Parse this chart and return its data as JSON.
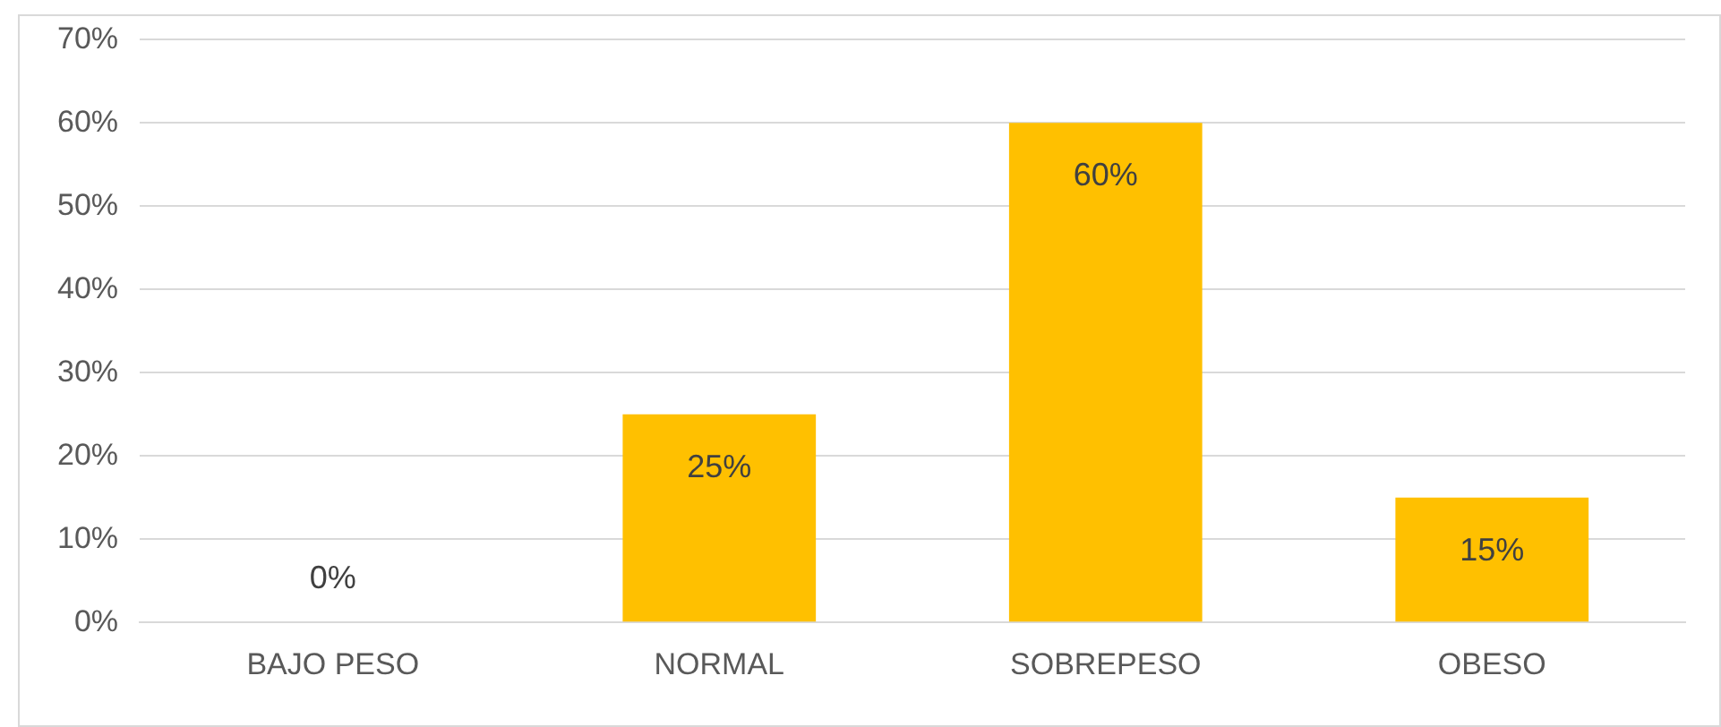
{
  "chart_data": {
    "type": "bar",
    "categories": [
      "BAJO PESO",
      "NORMAL",
      "SOBREPESO",
      "OBESO"
    ],
    "values": [
      0,
      25,
      60,
      15
    ],
    "value_labels": [
      "0%",
      "25%",
      "60%",
      "15%"
    ],
    "color": "#ffc000",
    "ylim": [
      0,
      70
    ],
    "yticks": [
      {
        "value": 0,
        "label": "0%"
      },
      {
        "value": 10,
        "label": "10%"
      },
      {
        "value": 20,
        "label": "20%"
      },
      {
        "value": 30,
        "label": "30%"
      },
      {
        "value": 40,
        "label": "40%"
      },
      {
        "value": 50,
        "label": "50%"
      },
      {
        "value": 60,
        "label": "60%"
      },
      {
        "value": 70,
        "label": "70%"
      }
    ],
    "grid": "y"
  }
}
